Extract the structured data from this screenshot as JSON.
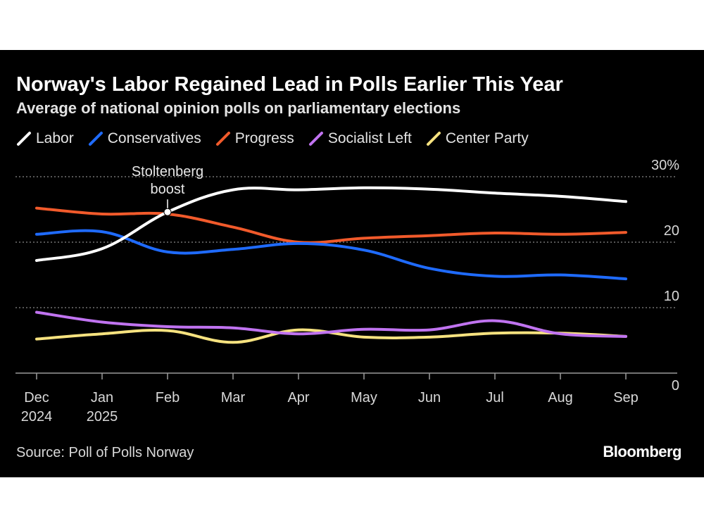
{
  "header": {
    "title": "Norway's Labor Regained Lead in Polls Earlier This Year",
    "subtitle": "Average of national opinion polls on parliamentary elections"
  },
  "footer": {
    "source": "Source: Poll of Polls Norway",
    "brand": "Bloomberg"
  },
  "chart_data": {
    "type": "line",
    "title": "Norway's Labor Regained Lead in Polls Earlier This Year",
    "subtitle": "Average of national opinion polls on parliamentary elections",
    "x": [
      "2024-12-01",
      "2025-01-01",
      "2025-02-01",
      "2025-03-01",
      "2025-04-01",
      "2025-05-01",
      "2025-06-01",
      "2025-07-01",
      "2025-08-01",
      "2025-09-01"
    ],
    "x_tick_labels": [
      {
        "line1": "Dec",
        "line2": "2024"
      },
      {
        "line1": "Jan",
        "line2": "2025"
      },
      {
        "line1": "Feb",
        "line2": ""
      },
      {
        "line1": "Mar",
        "line2": ""
      },
      {
        "line1": "Apr",
        "line2": ""
      },
      {
        "line1": "May",
        "line2": ""
      },
      {
        "line1": "Jun",
        "line2": ""
      },
      {
        "line1": "Jul",
        "line2": ""
      },
      {
        "line1": "Aug",
        "line2": ""
      },
      {
        "line1": "Sep",
        "line2": ""
      }
    ],
    "y_ticks": [
      0,
      10,
      20,
      30
    ],
    "y_tick_labels": [
      "0",
      "10",
      "20",
      "30%"
    ],
    "ylim": [
      0,
      30
    ],
    "grid": true,
    "legend_position": "top-left",
    "series": [
      {
        "name": "Labor",
        "color": "#ffffff",
        "values": [
          17.2,
          19.0,
          24.6,
          28.0,
          28.0,
          28.3,
          28.1,
          27.5,
          27.0,
          26.2
        ]
      },
      {
        "name": "Conservatives",
        "color": "#1f6bff",
        "values": [
          21.2,
          21.6,
          18.5,
          18.9,
          19.8,
          18.8,
          16.0,
          14.8,
          15.0,
          14.4
        ]
      },
      {
        "name": "Progress",
        "color": "#f15a2b",
        "values": [
          25.2,
          24.3,
          24.3,
          22.3,
          20.0,
          20.6,
          21.0,
          21.4,
          21.2,
          21.5
        ]
      },
      {
        "name": "Socialist Left",
        "color": "#c073f0",
        "values": [
          9.3,
          7.8,
          7.1,
          6.9,
          6.0,
          6.7,
          6.6,
          8.0,
          6.0,
          5.6
        ]
      },
      {
        "name": "Center Party",
        "color": "#f6e27f",
        "values": [
          5.2,
          6.0,
          6.5,
          4.7,
          6.6,
          5.5,
          5.5,
          6.1,
          6.1,
          5.6
        ]
      }
    ],
    "annotations": [
      {
        "line1": "Stoltenberg",
        "line2": "boost",
        "x": "2025-02-01",
        "y": 24.6,
        "series": "Labor"
      }
    ]
  }
}
